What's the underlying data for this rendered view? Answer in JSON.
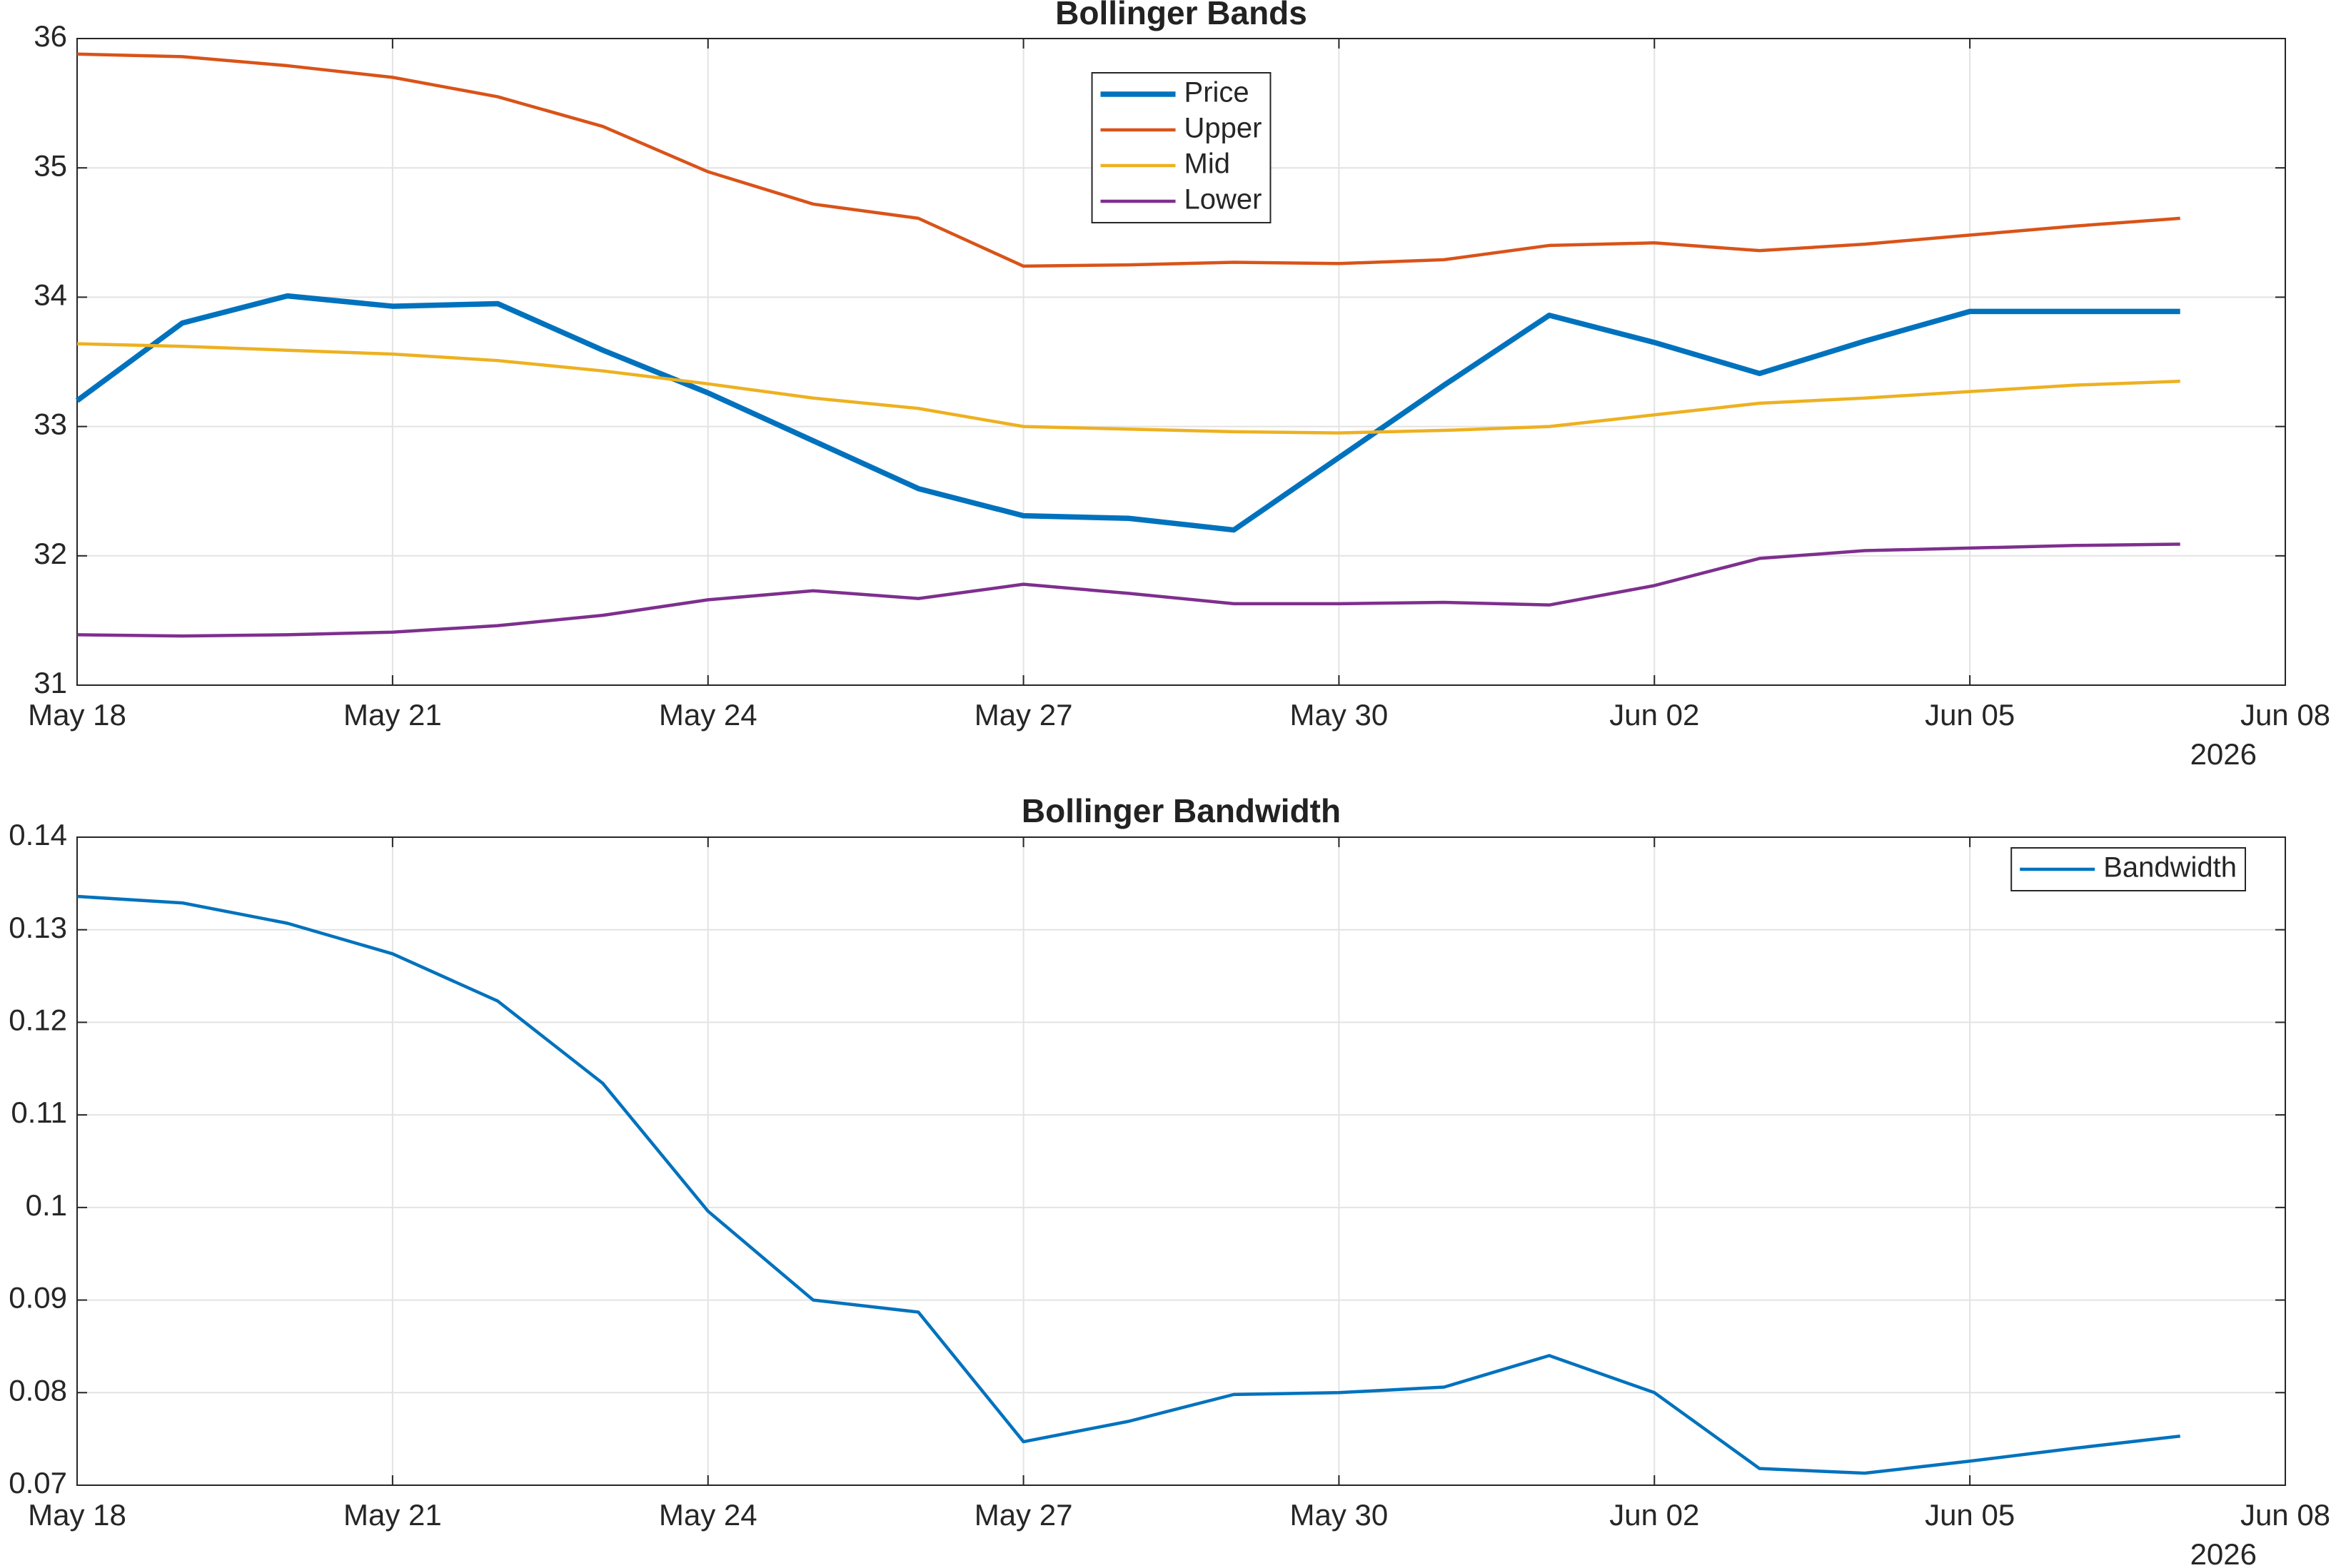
{
  "chart_data": [
    {
      "type": "line",
      "title": "Bollinger Bands",
      "x": [
        "2026-05-18",
        "2026-05-19",
        "2026-05-20",
        "2026-05-21",
        "2026-05-22",
        "2026-05-23",
        "2026-05-24",
        "2026-05-25",
        "2026-05-26",
        "2026-05-27",
        "2026-05-28",
        "2026-05-29",
        "2026-05-30",
        "2026-05-31",
        "2026-06-01",
        "2026-06-02",
        "2026-06-03",
        "2026-06-04",
        "2026-06-05",
        "2026-06-06",
        "2026-06-07"
      ],
      "series": [
        {
          "name": "Price",
          "color": "#0072bd",
          "values": [
            33.2,
            33.8,
            34.01,
            33.93,
            33.95,
            33.59,
            33.26,
            32.89,
            32.52,
            32.31,
            32.29,
            32.2,
            32.76,
            33.32,
            33.86,
            33.65,
            33.41,
            33.66,
            33.89,
            33.89,
            33.89
          ]
        },
        {
          "name": "Upper",
          "color": "#d95319",
          "values": [
            35.88,
            35.86,
            35.79,
            35.7,
            35.55,
            35.32,
            34.97,
            34.72,
            34.61,
            34.24,
            34.25,
            34.27,
            34.26,
            34.29,
            34.4,
            34.42,
            34.36,
            34.41,
            34.48,
            34.55,
            34.61
          ]
        },
        {
          "name": "Mid",
          "color": "#edb120",
          "values": [
            33.64,
            33.62,
            33.59,
            33.56,
            33.51,
            33.43,
            33.33,
            33.22,
            33.14,
            33.0,
            32.98,
            32.96,
            32.95,
            32.97,
            33.0,
            33.09,
            33.18,
            33.22,
            33.27,
            33.32,
            33.35
          ]
        },
        {
          "name": "Lower",
          "color": "#7e2f8e",
          "values": [
            31.39,
            31.38,
            31.39,
            31.41,
            31.46,
            31.54,
            31.66,
            31.73,
            31.67,
            31.78,
            31.71,
            31.63,
            31.63,
            31.64,
            31.62,
            31.77,
            31.98,
            32.04,
            32.06,
            32.08,
            32.09
          ]
        }
      ],
      "xlim": [
        "2026-05-18",
        "2026-06-08"
      ],
      "xticks": [
        {
          "value": "2026-05-18",
          "label": "May 18"
        },
        {
          "value": "2026-05-21",
          "label": "May 21"
        },
        {
          "value": "2026-05-24",
          "label": "May 24"
        },
        {
          "value": "2026-05-27",
          "label": "May 27"
        },
        {
          "value": "2026-05-30",
          "label": "May 30"
        },
        {
          "value": "2026-06-02",
          "label": "Jun 02"
        },
        {
          "value": "2026-06-05",
          "label": "Jun 05"
        },
        {
          "value": "2026-06-08",
          "label": "Jun 08"
        }
      ],
      "x_year_label": "2026",
      "ylim": [
        31,
        36
      ],
      "yticks": [
        31,
        32,
        33,
        34,
        35,
        36
      ],
      "grid": true,
      "legend": "north"
    },
    {
      "type": "line",
      "title": "Bollinger Bandwidth",
      "x": [
        "2026-05-18",
        "2026-05-19",
        "2026-05-20",
        "2026-05-21",
        "2026-05-22",
        "2026-05-23",
        "2026-05-24",
        "2026-05-25",
        "2026-05-26",
        "2026-05-27",
        "2026-05-28",
        "2026-05-29",
        "2026-05-30",
        "2026-05-31",
        "2026-06-01",
        "2026-06-02",
        "2026-06-03",
        "2026-06-04",
        "2026-06-05",
        "2026-06-06",
        "2026-06-07"
      ],
      "series": [
        {
          "name": "Bandwidth",
          "color": "#0072bd",
          "values": [
            0.1336,
            0.1329,
            0.1307,
            0.1274,
            0.1223,
            0.1134,
            0.0996,
            0.09,
            0.0887,
            0.0747,
            0.0769,
            0.0798,
            0.08,
            0.0806,
            0.084,
            0.08,
            0.0718,
            0.0713,
            0.0726,
            0.074,
            0.0753
          ]
        }
      ],
      "xlim": [
        "2026-05-18",
        "2026-06-08"
      ],
      "xticks": [
        {
          "value": "2026-05-18",
          "label": "May 18"
        },
        {
          "value": "2026-05-21",
          "label": "May 21"
        },
        {
          "value": "2026-05-24",
          "label": "May 24"
        },
        {
          "value": "2026-05-27",
          "label": "May 27"
        },
        {
          "value": "2026-05-30",
          "label": "May 30"
        },
        {
          "value": "2026-06-02",
          "label": "Jun 02"
        },
        {
          "value": "2026-06-05",
          "label": "Jun 05"
        },
        {
          "value": "2026-06-08",
          "label": "Jun 08"
        }
      ],
      "x_year_label": "2026",
      "ylim": [
        0.07,
        0.14
      ],
      "yticks": [
        0.07,
        0.08,
        0.09,
        0.1,
        0.11,
        0.12,
        0.13,
        0.14
      ],
      "grid": true,
      "legend": "northeast"
    }
  ]
}
